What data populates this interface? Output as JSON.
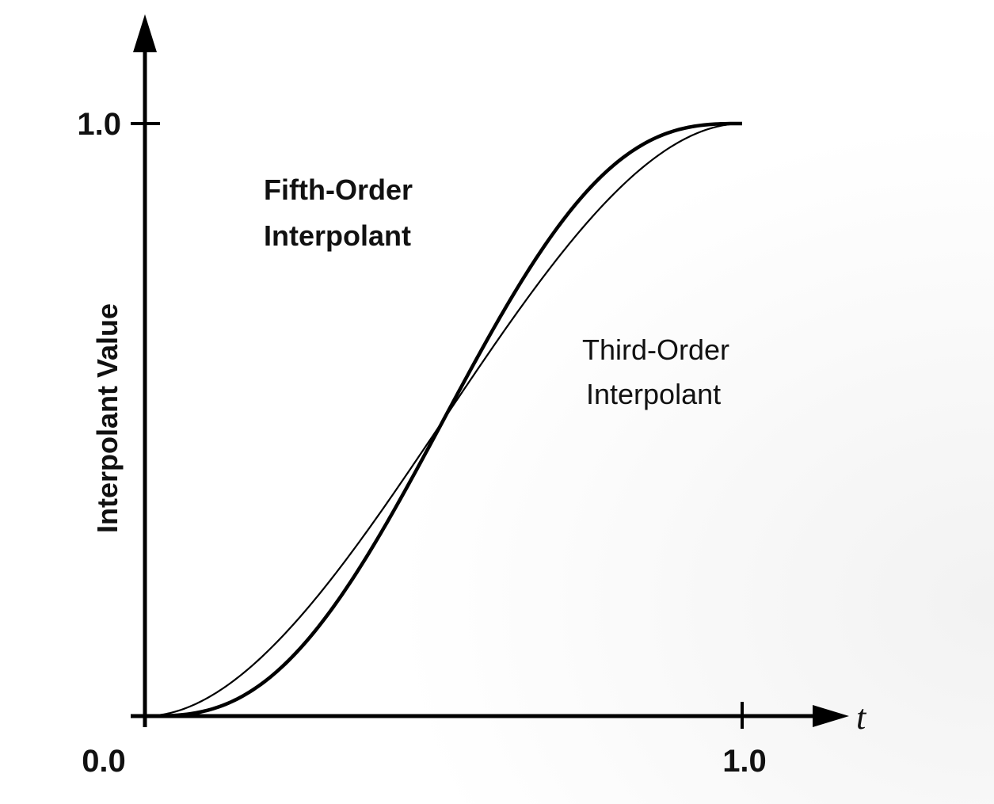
{
  "chart_data": {
    "type": "line",
    "ylabel": "Interpolant Value",
    "xlabel": "t",
    "xlim": [
      0.0,
      1.0
    ],
    "ylim": [
      0.0,
      1.0
    ],
    "x_ticks": [
      {
        "value": 0.0,
        "label": "0.0"
      },
      {
        "value": 1.0,
        "label": "1.0"
      }
    ],
    "y_ticks": [
      {
        "value": 1.0,
        "label": "1.0"
      }
    ],
    "grid": false,
    "series": [
      {
        "name": "Fifth-Order Interpolant",
        "formula": "6t^5 - 15t^4 + 10t^3",
        "x": [
          0,
          0.1,
          0.2,
          0.3,
          0.4,
          0.5,
          0.6,
          0.7,
          0.8,
          0.9,
          1.0
        ],
        "values": [
          0,
          0.009,
          0.058,
          0.163,
          0.317,
          0.5,
          0.683,
          0.837,
          0.942,
          0.991,
          1.0
        ],
        "color": "#000000",
        "stroke": "thick"
      },
      {
        "name": "Third-Order Interpolant",
        "formula": "3t^2 - 2t^3",
        "x": [
          0,
          0.1,
          0.2,
          0.3,
          0.4,
          0.5,
          0.6,
          0.7,
          0.8,
          0.9,
          1.0
        ],
        "values": [
          0,
          0.028,
          0.104,
          0.216,
          0.352,
          0.5,
          0.648,
          0.784,
          0.896,
          0.972,
          1.0
        ],
        "color": "#000000",
        "stroke": "thin"
      }
    ],
    "annotations": {
      "fifth_line1": "Fifth-Order",
      "fifth_line2": "Interpolant",
      "third_line1": "Third-Order",
      "third_line2": "Interpolant"
    }
  }
}
